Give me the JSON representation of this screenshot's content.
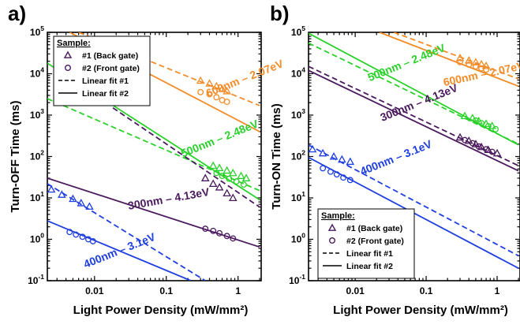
{
  "colors": {
    "orange": "#f28c28",
    "green": "#2bd12b",
    "purple": "#4b1a5e",
    "blue": "#1f3fe0",
    "axis": "#000000"
  },
  "marker_shapes": {
    "back_gate": "triangle",
    "front_gate": "circle"
  },
  "chart_data": [
    {
      "type": "scatter",
      "panel_label": "a)",
      "xlabel": "Light Power Density (mW/mm²)",
      "ylabel": "Turn-OFF Time (ms)",
      "x_scale": "log",
      "y_scale": "log",
      "xlim": [
        0.0022,
        2.1
      ],
      "ylim": [
        0.1,
        100000
      ],
      "x_ticks": [
        {
          "value": 0.01,
          "label": "0.01"
        },
        {
          "value": 0.1,
          "label": "0.1"
        },
        {
          "value": 1,
          "label": "1"
        }
      ],
      "y_ticks": [
        {
          "value": 0.1,
          "base": "10",
          "exp": "-1"
        },
        {
          "value": 1,
          "base": "10",
          "exp": "0"
        },
        {
          "value": 10,
          "base": "10",
          "exp": "1"
        },
        {
          "value": 100,
          "base": "10",
          "exp": "2"
        },
        {
          "value": 1000,
          "base": "10",
          "exp": "3"
        },
        {
          "value": 10000,
          "base": "10",
          "exp": "4"
        },
        {
          "value": 100000,
          "base": "10",
          "exp": "5"
        }
      ],
      "legend": {
        "title": "Sample:",
        "position": "top-left",
        "entries": [
          {
            "label": "#1 (Back gate)",
            "kind": "triangle"
          },
          {
            "label": "#2 (Front gate)",
            "kind": "circle"
          },
          {
            "label": "Linear fit #1",
            "kind": "dashed"
          },
          {
            "label": "Linear fit #2",
            "kind": "solid"
          }
        ]
      },
      "series": [
        {
          "name": "600nm – 2.07eV",
          "color_key": "orange",
          "label_anchor": [
            0.38,
            2700
          ],
          "label_angle": -22,
          "back_gate": {
            "x": [
              0.3,
              0.4,
              0.5,
              0.6,
              0.7
            ],
            "y": [
              6800,
              5800,
              5000,
              4300,
              3800
            ]
          },
          "front_gate": {
            "x": [
              0.3,
              0.4,
              0.5,
              0.6,
              0.7
            ],
            "y": [
              3600,
              3200,
              2700,
              2300,
              2100
            ]
          },
          "fit1": {
            "x": [
              0.006,
              2.0
            ],
            "y": [
              100000,
              1700
            ]
          },
          "fit2": {
            "x": [
              0.0045,
              2.0
            ],
            "y": [
              100000,
              400
            ]
          }
        },
        {
          "name": "500nm – 2.48eV",
          "color_key": "green",
          "label_anchor": [
            0.17,
            95
          ],
          "label_angle": -22,
          "back_gate": {
            "x": [
              0.45,
              0.55,
              0.7,
              0.85,
              1.1,
              1.3
            ],
            "y": [
              60,
              53,
              46,
              40,
              34,
              30
            ]
          },
          "front_gate": {
            "x": [
              0.5,
              0.6,
              0.75,
              0.95,
              1.2
            ],
            "y": [
              40,
              34,
              29,
              25,
              21
            ]
          },
          "fit1": {
            "x": [
              0.0022,
              2.0
            ],
            "y": [
              2500,
              15
            ]
          },
          "fit2": {
            "x": [
              0.0022,
              2.0
            ],
            "y": [
              18000,
              9
            ]
          }
        },
        {
          "name": "300nm – 4.13eV",
          "color_key": "purple",
          "label_anchor": [
            0.03,
            5.2
          ],
          "label_angle": -10,
          "back_gate": {
            "x": [
              0.35,
              0.45,
              0.55,
              0.7,
              0.85
            ],
            "y": [
              30,
              22,
              18,
              13,
              10
            ]
          },
          "front_gate": {
            "x": [
              0.35,
              0.45,
              0.55,
              0.7,
              0.85
            ],
            "y": [
              1.8,
              1.6,
              1.4,
              1.2,
              1.05
            ]
          },
          "fit1": {
            "x": [
              0.018,
              2.0
            ],
            "y": [
              1500,
              6
            ]
          },
          "fit2": {
            "x": [
              0.0022,
              2.0
            ],
            "y": [
              30,
              0.65
            ]
          }
        },
        {
          "name": "400nm – 3.1eV",
          "color_key": "blue",
          "label_anchor": [
            0.0075,
            0.2
          ],
          "label_angle": -22,
          "back_gate": {
            "x": [
              0.0025,
              0.0035,
              0.005,
              0.0065,
              0.0085
            ],
            "y": [
              16,
              12,
              9.5,
              7.5,
              6.2
            ]
          },
          "front_gate": {
            "x": [
              0.0045,
              0.0055,
              0.0068,
              0.0082,
              0.0095
            ],
            "y": [
              1.5,
              1.3,
              1.15,
              1.0,
              0.9
            ]
          },
          "fit1": {
            "x": [
              0.0022,
              0.35
            ],
            "y": [
              22,
              0.1
            ]
          },
          "fit2": {
            "x": [
              0.0022,
              0.22
            ],
            "y": [
              2.8,
              0.1
            ]
          }
        }
      ]
    },
    {
      "type": "scatter",
      "panel_label": "b)",
      "xlabel": "Light Power Density (mW/mm²)",
      "ylabel": "Turn-ON Time (ms)",
      "x_scale": "log",
      "y_scale": "log",
      "xlim": [
        0.0022,
        2.1
      ],
      "ylim": [
        0.1,
        100000
      ],
      "x_ticks": [
        {
          "value": 0.01,
          "label": "0.01"
        },
        {
          "value": 0.1,
          "label": "0.1"
        },
        {
          "value": 1,
          "label": "1"
        }
      ],
      "y_ticks": [
        {
          "value": 0.1,
          "base": "10",
          "exp": "-1"
        },
        {
          "value": 1,
          "base": "10",
          "exp": "0"
        },
        {
          "value": 10,
          "base": "10",
          "exp": "1"
        },
        {
          "value": 100,
          "base": "10",
          "exp": "2"
        },
        {
          "value": 1000,
          "base": "10",
          "exp": "3"
        },
        {
          "value": 10000,
          "base": "10",
          "exp": "4"
        },
        {
          "value": 100000,
          "base": "10",
          "exp": "5"
        }
      ],
      "legend": {
        "title": "Sample:",
        "position": "bottom-left",
        "entries": [
          {
            "label": "#1 (Back gate)",
            "kind": "triangle"
          },
          {
            "label": "#2 (Front gate)",
            "kind": "circle"
          },
          {
            "label": "Linear fit #1",
            "kind": "dashed"
          },
          {
            "label": "Linear fit #2",
            "kind": "solid"
          }
        ]
      },
      "series": [
        {
          "name": "600nm – 2.07eV",
          "color_key": "orange",
          "label_anchor": [
            0.18,
            5000
          ],
          "label_angle": -12,
          "back_gate": {
            "x": [
              0.3,
              0.4,
              0.5,
              0.6,
              0.7
            ],
            "y": [
              24000,
              21000,
              19000,
              17000,
              15500
            ]
          },
          "front_gate": {
            "x": [
              0.3,
              0.4,
              0.5,
              0.6,
              0.7
            ],
            "y": [
              19000,
              16500,
              15000,
              13500,
              12500
            ]
          },
          "fit1": {
            "x": [
              0.035,
              2.0
            ],
            "y": [
              100000,
              7500
            ]
          },
          "fit2": {
            "x": [
              0.022,
              2.0
            ],
            "y": [
              100000,
              5000
            ]
          }
        },
        {
          "name": "500nm – 2.48eV",
          "color_key": "green",
          "label_anchor": [
            0.016,
            6500
          ],
          "label_angle": -22,
          "back_gate": {
            "x": [
              0.35,
              0.45,
              0.55,
              0.7,
              0.85
            ],
            "y": [
              950,
              850,
              720,
              620,
              550
            ]
          },
          "front_gate": {
            "x": [
              0.5,
              0.6,
              0.75,
              0.95
            ],
            "y": [
              740,
              640,
              540,
              460
            ]
          },
          "fit1": {
            "x": [
              0.0022,
              2.0
            ],
            "y": [
              55000,
              200
            ]
          },
          "fit2": {
            "x": [
              0.0022,
              2.0
            ],
            "y": [
              95000,
              190
            ]
          }
        },
        {
          "name": "300nm – 4.13eV",
          "color_key": "purple",
          "label_anchor": [
            0.024,
            700
          ],
          "label_angle": -22,
          "back_gate": {
            "x": [
              0.3,
              0.4,
              0.5,
              0.6,
              0.75,
              1.0
            ],
            "y": [
              290,
              240,
              200,
              170,
              145,
              120
            ]
          },
          "front_gate": {
            "x": [
              0.35,
              0.45,
              0.55,
              0.7,
              0.85
            ],
            "y": [
              250,
              210,
              175,
              150,
              130
            ]
          },
          "fit1": {
            "x": [
              0.0022,
              2.0
            ],
            "y": [
              15000,
              60
            ]
          },
          "fit2": {
            "x": [
              0.0022,
              2.0
            ],
            "y": [
              12000,
              45
            ]
          }
        },
        {
          "name": "400nm – 3.1eV",
          "color_key": "blue",
          "label_anchor": [
            0.0125,
            35
          ],
          "label_angle": -22,
          "back_gate": {
            "x": [
              0.0025,
              0.0035,
              0.005,
              0.0065,
              0.0085
            ],
            "y": [
              150,
              120,
              100,
              85,
              75
            ]
          },
          "front_gate": {
            "x": [
              0.0035,
              0.0045,
              0.0055,
              0.0068,
              0.0085
            ],
            "y": [
              52,
              43,
              37,
              31,
              27
            ]
          },
          "fit1": {
            "x": [
              0.0022,
              2.0
            ],
            "y": [
              190,
              0.4
            ]
          },
          "fit2": {
            "x": [
              0.0022,
              2.0
            ],
            "y": [
              95,
              0.2
            ]
          }
        }
      ]
    }
  ]
}
